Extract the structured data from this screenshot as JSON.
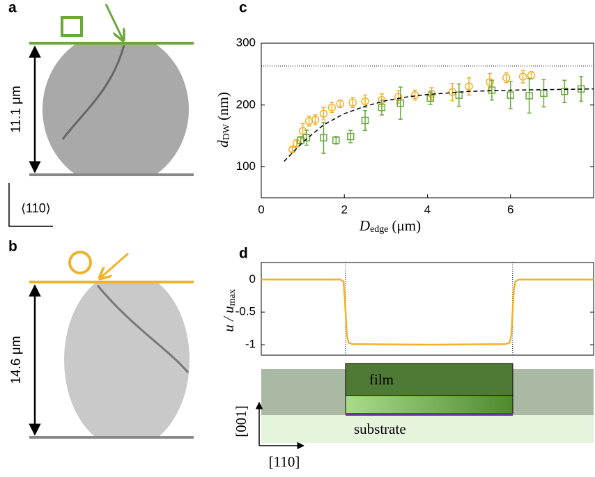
{
  "panels": {
    "a": {
      "label": "a",
      "scale": "11.1 μm",
      "direction": "⟨110⟩"
    },
    "b": {
      "label": "b",
      "scale": "14.6 μm"
    },
    "d_schematic": {
      "film": "film",
      "substrate": "substrate",
      "vertical_axis": "[001]",
      "horizontal_axis": "[110]"
    }
  },
  "chart_data": [
    {
      "type": "scatter",
      "panel_label": "c",
      "x_label": "D",
      "x_label_sub": "edge",
      "x_label_unit": "(μm)",
      "y_label": "d",
      "y_label_sub": "DW",
      "y_label_unit": "(nm)",
      "xlim": [
        0,
        8
      ],
      "ylim": [
        50,
        300
      ],
      "xticks": [
        0,
        2,
        4,
        6
      ],
      "yticks": [
        100,
        200,
        300
      ],
      "hlines": [
        263
      ],
      "series": [
        {
          "color": "#f0b22c",
          "marker": "circle",
          "x": [
            0.75,
            0.85,
            1.0,
            1.15,
            1.3,
            1.5,
            1.7,
            1.9,
            2.2,
            2.5,
            2.9,
            3.3,
            3.7,
            4.1,
            4.6,
            5.0,
            5.5,
            5.9,
            6.3,
            6.5
          ],
          "values": [
            128,
            138,
            158,
            174,
            176,
            186,
            196,
            202,
            204,
            206,
            208,
            213,
            216,
            218,
            221,
            230,
            237,
            244,
            246,
            248
          ],
          "errors": [
            4,
            6,
            12,
            8,
            8,
            10,
            8,
            6,
            8,
            10,
            10,
            10,
            8,
            10,
            14,
            14,
            14,
            8,
            10,
            6
          ]
        },
        {
          "color": "#6aa83c",
          "marker": "square",
          "x": [
            0.95,
            1.09,
            1.5,
            1.8,
            2.15,
            2.5,
            2.9,
            3.35,
            4.07,
            4.76,
            5.55,
            6.0,
            6.45,
            6.8,
            7.3,
            7.7
          ],
          "values": [
            143,
            147,
            147,
            143,
            149,
            175,
            196,
            203,
            211,
            216,
            224,
            216,
            215,
            219,
            222,
            226
          ],
          "errors": [
            6,
            12,
            25,
            6,
            10,
            16,
            12,
            26,
            10,
            18,
            16,
            22,
            28,
            22,
            18,
            20
          ]
        },
        {
          "color": "#000000",
          "style": "dashed",
          "x": [
            0.55,
            1,
            1.5,
            2,
            2.5,
            3,
            3.5,
            4,
            5,
            6,
            7,
            8
          ],
          "values": [
            109,
            140,
            168,
            186,
            198,
            207,
            213,
            217,
            222,
            224,
            225,
            226
          ]
        }
      ]
    },
    {
      "type": "line",
      "panel_label": "d",
      "y_label": "u / u",
      "y_label_sub": "max",
      "xlim": [
        0,
        8
      ],
      "ylim": [
        -1.16,
        0.26
      ],
      "yticks": [
        0,
        -0.5,
        -1
      ],
      "vlines": [
        2.03,
        6.05
      ],
      "series": [
        {
          "color": "#f0b22c",
          "x": [
            0,
            1.9,
            1.98,
            2.0,
            2.03,
            2.06,
            2.1,
            2.2,
            4,
            5.88,
            5.98,
            6.02,
            6.05,
            6.08,
            6.12,
            6.2,
            8
          ],
          "values": [
            0,
            0,
            -0.03,
            -0.2,
            -0.5,
            -0.85,
            -0.97,
            -0.99,
            -1,
            -0.99,
            -0.97,
            -0.85,
            -0.5,
            -0.15,
            -0.03,
            0,
            0
          ]
        }
      ]
    }
  ]
}
